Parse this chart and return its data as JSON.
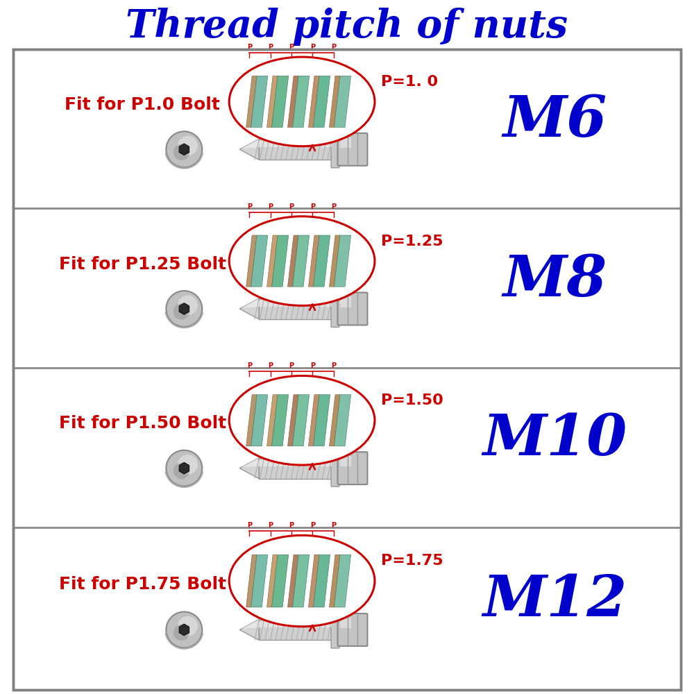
{
  "title": "Thread pitch of nuts",
  "title_color": "#0000CC",
  "title_fontsize": 40,
  "background_color": "#ffffff",
  "outer_border_color": "#808080",
  "rows": [
    {
      "label": "M6",
      "fit_text": "Fit for P1.0 Bolt",
      "pitch_text": "P=1. 0",
      "n_pitch": 5,
      "label_color": "#0000CC",
      "label_fontsize": 60
    },
    {
      "label": "M8",
      "fit_text": "Fit for P1.25 Bolt",
      "pitch_text": "P=1.25",
      "n_pitch": 5,
      "label_color": "#0000CC",
      "label_fontsize": 60
    },
    {
      "label": "M10",
      "fit_text": "Fit for P1.50 Bolt",
      "pitch_text": "P=1.50",
      "n_pitch": 5,
      "label_color": "#0000CC",
      "label_fontsize": 60
    },
    {
      "label": "M12",
      "fit_text": "Fit for P1.75 Bolt",
      "pitch_text": "P=1.75",
      "n_pitch": 5,
      "label_color": "#0000CC",
      "label_fontsize": 60
    }
  ],
  "fit_text_color": "#cc0000",
  "fit_text_fontsize": 18,
  "pitch_text_color": "#cc0000",
  "pitch_text_fontsize": 16,
  "oval_color": "#cc0000",
  "row_bg_color": "#ffffff",
  "row_border_color": "#888888",
  "sep_color": "#888888"
}
